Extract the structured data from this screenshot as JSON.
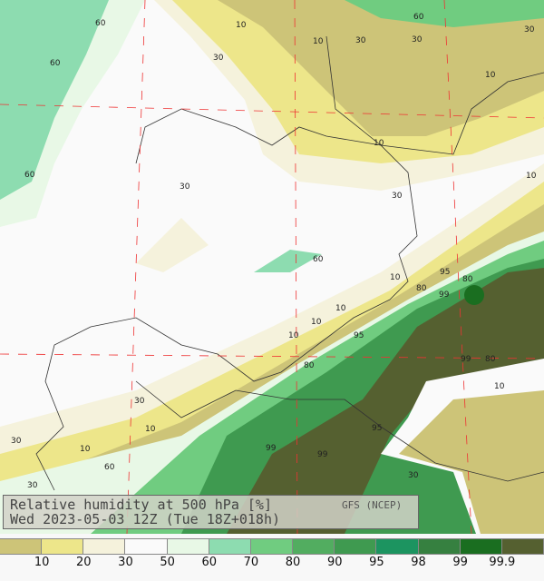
{
  "title": "Relative humidity at 500 hPa [%]",
  "subtitle": "Wed 2023-05-03 12Z (Tue 18Z+018h)",
  "source": "GFS (NCEP)",
  "colorbar": {
    "colors": [
      "#cdc478",
      "#ede68a",
      "#f5f2dc",
      "#fafafa",
      "#e8f8e6",
      "#8ddcb0",
      "#70cc80",
      "#52ad60",
      "#3f9a50",
      "#1c9460",
      "#368040",
      "#1a6e20",
      "#556030"
    ],
    "labels": [
      "10",
      "20",
      "30",
      "50",
      "60",
      "70",
      "80",
      "90",
      "95",
      "98",
      "99",
      "99.9"
    ]
  },
  "contour_labels": [
    "60",
    "10",
    "30",
    "60",
    "10",
    "30",
    "30",
    "10",
    "10",
    "60",
    "30",
    "60",
    "30",
    "10",
    "30",
    "60",
    "10",
    "10",
    "10",
    "10",
    "80",
    "99",
    "80",
    "95",
    "99",
    "80",
    "10",
    "30",
    "30",
    "10",
    "60",
    "99",
    "99",
    "95",
    "30",
    "30",
    "10",
    "80",
    "95"
  ]
}
